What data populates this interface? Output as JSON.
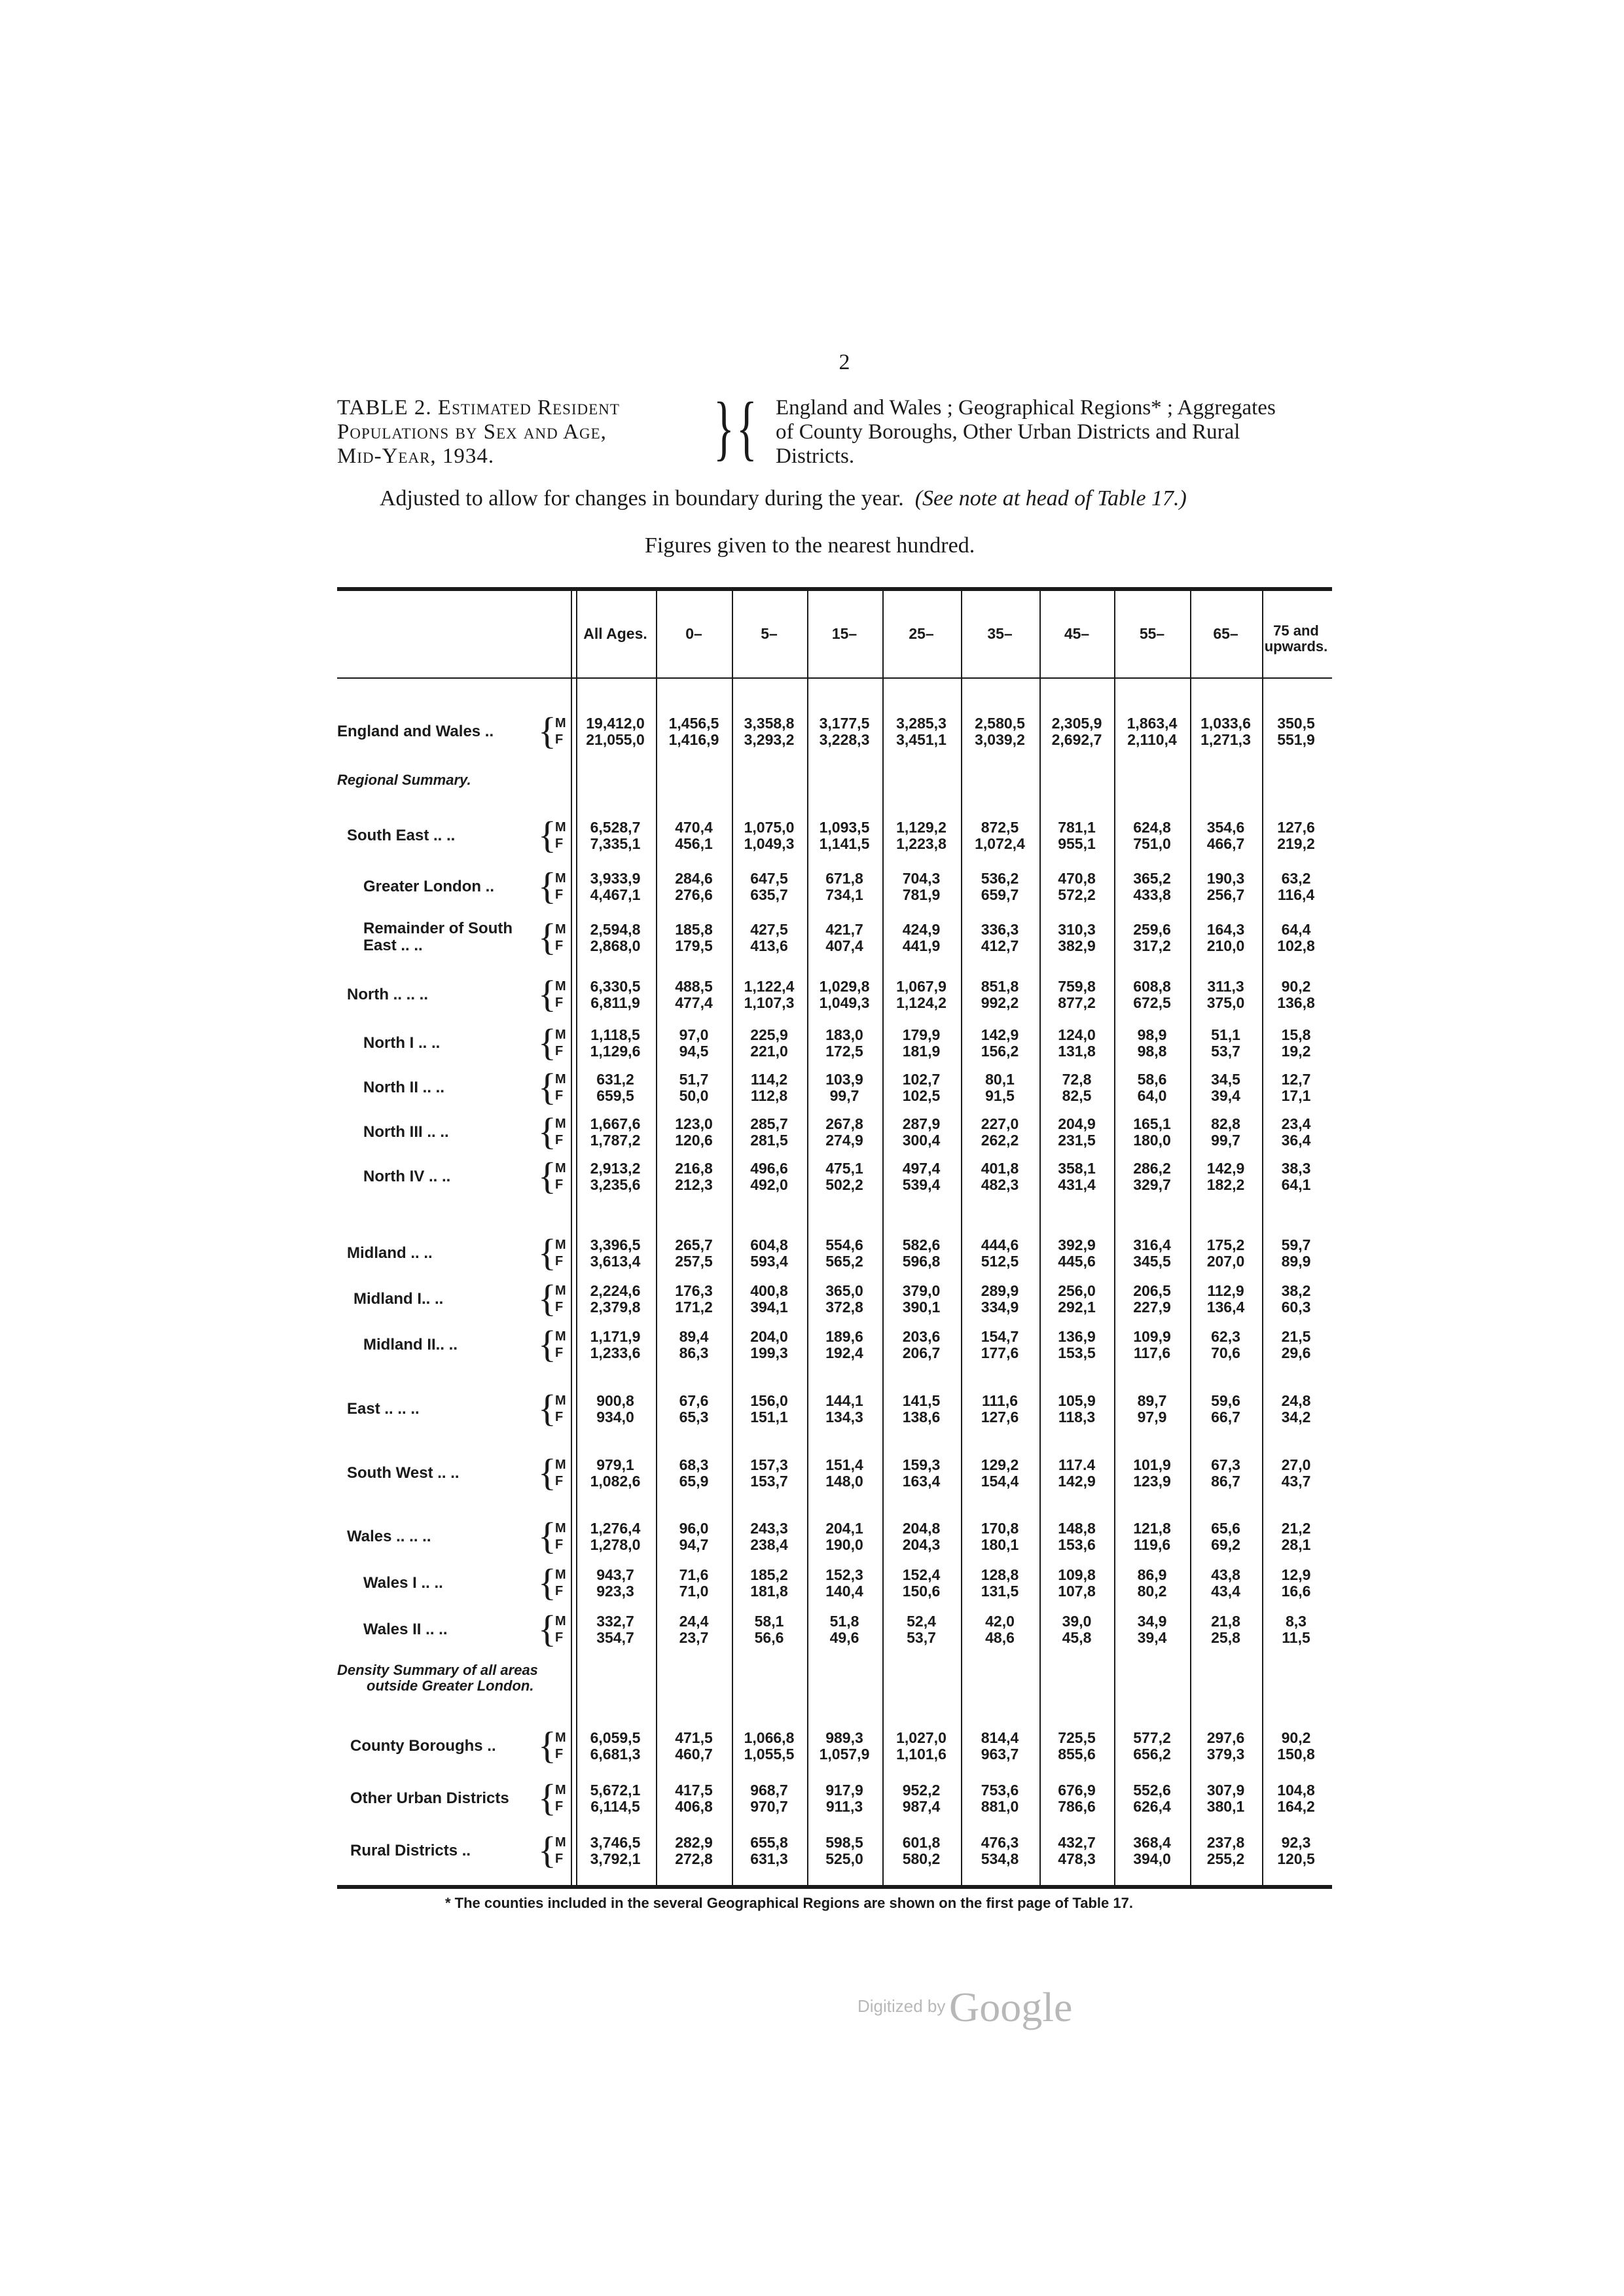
{
  "page_number": "2",
  "caption": {
    "left_lines": [
      "TABLE 2. Estimated Resident",
      "Populations by Sex and Age,",
      "Mid-Year, 1934."
    ],
    "right_lines": [
      "England and Wales ; Geographical Regions* ; Aggregates",
      "of County Boroughs, Other Urban Districts and Rural",
      "Districts."
    ]
  },
  "adjusted_text": "Adjusted to allow for changes in boundary during the year.",
  "adjusted_note": "(See note at head of Table 17.)",
  "figures_text": "Figures given to the nearest hundred.",
  "columns": [
    "All Ages.",
    "0–",
    "5–",
    "15–",
    "25–",
    "35–",
    "45–",
    "55–",
    "65–"
  ],
  "last_column": [
    "75 and",
    "upwards."
  ],
  "sections": {
    "regional": "Regional Summary.",
    "density_1": "Density Summary of all areas",
    "density_2": "outside Greater London."
  },
  "sex_labels": {
    "m": "M",
    "f": "F"
  },
  "rows": [
    {
      "label": "England and Wales",
      "dots": "..",
      "m": [
        "19,412,0",
        "1,456,5",
        "3,358,8",
        "3,177,5",
        "3,285,3",
        "2,580,5",
        "2,305,9",
        "1,863,4",
        "1,033,6",
        "350,5"
      ],
      "f": [
        "21,055,0",
        "1,416,9",
        "3,293,2",
        "3,228,3",
        "3,451,1",
        "3,039,2",
        "2,692,7",
        "2,110,4",
        "1,271,3",
        "551,9"
      ]
    },
    {
      "label": "South East  ..",
      "dots": "..",
      "m": [
        "6,528,7",
        "470,4",
        "1,075,0",
        "1,093,5",
        "1,129,2",
        "872,5",
        "781,1",
        "624,8",
        "354,6",
        "127,6"
      ],
      "f": [
        "7,335,1",
        "456,1",
        "1,049,3",
        "1,141,5",
        "1,223,8",
        "1,072,4",
        "955,1",
        "751,0",
        "466,7",
        "219,2"
      ]
    },
    {
      "label": "Greater London",
      "dots": "..",
      "m": [
        "3,933,9",
        "284,6",
        "647,5",
        "671,8",
        "704,3",
        "536,2",
        "470,8",
        "365,2",
        "190,3",
        "63,2"
      ],
      "f": [
        "4,467,1",
        "276,6",
        "635,7",
        "734,1",
        "781,9",
        "659,7",
        "572,2",
        "433,8",
        "256,7",
        "116,4"
      ]
    },
    {
      "label": "Remainder of South",
      "label2": "East  ..  ..",
      "dots": "",
      "m": [
        "2,594,8",
        "185,8",
        "427,5",
        "421,7",
        "424,9",
        "336,3",
        "310,3",
        "259,6",
        "164,3",
        "64,4"
      ],
      "f": [
        "2,868,0",
        "179,5",
        "413,6",
        "407,4",
        "441,9",
        "412,7",
        "382,9",
        "317,2",
        "210,0",
        "102,8"
      ]
    },
    {
      "label": "North ..   ..",
      "dots": "..",
      "m": [
        "6,330,5",
        "488,5",
        "1,122,4",
        "1,029,8",
        "1,067,9",
        "851,8",
        "759,8",
        "608,8",
        "311,3",
        "90,2"
      ],
      "f": [
        "6,811,9",
        "477,4",
        "1,107,3",
        "1,049,3",
        "1,124,2",
        "992,2",
        "877,2",
        "672,5",
        "375,0",
        "136,8"
      ]
    },
    {
      "label": "North I   ..",
      "dots": "..",
      "m": [
        "1,118,5",
        "97,0",
        "225,9",
        "183,0",
        "179,9",
        "142,9",
        "124,0",
        "98,9",
        "51,1",
        "15,8"
      ],
      "f": [
        "1,129,6",
        "94,5",
        "221,0",
        "172,5",
        "181,9",
        "156,2",
        "131,8",
        "98,8",
        "53,7",
        "19,2"
      ]
    },
    {
      "label": "North II  ..",
      "dots": "..",
      "m": [
        "631,2",
        "51,7",
        "114,2",
        "103,9",
        "102,7",
        "80,1",
        "72,8",
        "58,6",
        "34,5",
        "12,7"
      ],
      "f": [
        "659,5",
        "50,0",
        "112,8",
        "99,7",
        "102,5",
        "91,5",
        "82,5",
        "64,0",
        "39,4",
        "17,1"
      ]
    },
    {
      "label": "North III ..",
      "dots": "..",
      "m": [
        "1,667,6",
        "123,0",
        "285,7",
        "267,8",
        "287,9",
        "227,0",
        "204,9",
        "165,1",
        "82,8",
        "23,4"
      ],
      "f": [
        "1,787,2",
        "120,6",
        "281,5",
        "274,9",
        "300,4",
        "262,2",
        "231,5",
        "180,0",
        "99,7",
        "36,4"
      ]
    },
    {
      "label": "North IV  ..",
      "dots": "..",
      "m": [
        "2,913,2",
        "216,8",
        "496,6",
        "475,1",
        "497,4",
        "401,8",
        "358,1",
        "286,2",
        "142,9",
        "38,3"
      ],
      "f": [
        "3,235,6",
        "212,3",
        "492,0",
        "502,2",
        "539,4",
        "482,3",
        "431,4",
        "329,7",
        "182,2",
        "64,1"
      ]
    },
    {
      "label": "Midland    ..",
      "dots": "..",
      "m": [
        "3,396,5",
        "265,7",
        "604,8",
        "554,6",
        "582,6",
        "444,6",
        "392,9",
        "316,4",
        "175,2",
        "59,7"
      ],
      "f": [
        "3,613,4",
        "257,5",
        "593,4",
        "565,2",
        "596,8",
        "512,5",
        "445,6",
        "345,5",
        "207,0",
        "89,9"
      ]
    },
    {
      "label": "Midland  I..",
      "dots": "..",
      "m": [
        "2,224,6",
        "176,3",
        "400,8",
        "365,0",
        "379,0",
        "289,9",
        "256,0",
        "206,5",
        "112,9",
        "38,2"
      ],
      "f": [
        "2,379,8",
        "171,2",
        "394,1",
        "372,8",
        "390,1",
        "334,9",
        "292,1",
        "227,9",
        "136,4",
        "60,3"
      ]
    },
    {
      "label": "Midland II..",
      "dots": "..",
      "m": [
        "1,171,9",
        "89,4",
        "204,0",
        "189,6",
        "203,6",
        "154,7",
        "136,9",
        "109,9",
        "62,3",
        "21,5"
      ],
      "f": [
        "1,233,6",
        "86,3",
        "199,3",
        "192,4",
        "206,7",
        "177,6",
        "153,5",
        "117,6",
        "70,6",
        "29,6"
      ]
    },
    {
      "label": "East  ..   ..",
      "dots": "..",
      "m": [
        "900,8",
        "67,6",
        "156,0",
        "144,1",
        "141,5",
        "111,6",
        "105,9",
        "89,7",
        "59,6",
        "24,8"
      ],
      "f": [
        "934,0",
        "65,3",
        "151,1",
        "134,3",
        "138,6",
        "127,6",
        "118,3",
        "97,9",
        "66,7",
        "34,2"
      ]
    },
    {
      "label": "South West  ..",
      "dots": "..",
      "m": [
        "979,1",
        "68,3",
        "157,3",
        "151,4",
        "159,3",
        "129,2",
        "117.4",
        "101,9",
        "67,3",
        "27,0"
      ],
      "f": [
        "1,082,6",
        "65,9",
        "153,7",
        "148,0",
        "163,4",
        "154,4",
        "142,9",
        "123,9",
        "86,7",
        "43,7"
      ]
    },
    {
      "label": "Wales ..   ..",
      "dots": "..",
      "m": [
        "1,276,4",
        "96,0",
        "243,3",
        "204,1",
        "204,8",
        "170,8",
        "148,8",
        "121,8",
        "65,6",
        "21,2"
      ],
      "f": [
        "1,278,0",
        "94,7",
        "238,4",
        "190,0",
        "204,3",
        "180,1",
        "153,6",
        "119,6",
        "69,2",
        "28,1"
      ]
    },
    {
      "label": "Wales I  ..",
      "dots": "..",
      "m": [
        "943,7",
        "71,6",
        "185,2",
        "152,3",
        "152,4",
        "128,8",
        "109,8",
        "86,9",
        "43,8",
        "12,9"
      ],
      "f": [
        "923,3",
        "71,0",
        "181,8",
        "140,4",
        "150,6",
        "131,5",
        "107,8",
        "80,2",
        "43,4",
        "16,6"
      ]
    },
    {
      "label": "Wales II  ..",
      "dots": "..",
      "m": [
        "332,7",
        "24,4",
        "58,1",
        "51,8",
        "52,4",
        "42,0",
        "39,0",
        "34,9",
        "21,8",
        "8,3"
      ],
      "f": [
        "354,7",
        "23,7",
        "56,6",
        "49,6",
        "53,7",
        "48,6",
        "45,8",
        "39,4",
        "25,8",
        "11,5"
      ]
    },
    {
      "label": "County Boroughs",
      "dots": "..",
      "m": [
        "6,059,5",
        "471,5",
        "1,066,8",
        "989,3",
        "1,027,0",
        "814,4",
        "725,5",
        "577,2",
        "297,6",
        "90,2"
      ],
      "f": [
        "6,681,3",
        "460,7",
        "1,055,5",
        "1,057,9",
        "1,101,6",
        "963,7",
        "855,6",
        "656,2",
        "379,3",
        "150,8"
      ]
    },
    {
      "label": "Other Urban Districts",
      "dots": "",
      "m": [
        "5,672,1",
        "417,5",
        "968,7",
        "917,9",
        "952,2",
        "753,6",
        "676,9",
        "552,6",
        "307,9",
        "104,8"
      ],
      "f": [
        "6,114,5",
        "406,8",
        "970,7",
        "911,3",
        "987,4",
        "881,0",
        "786,6",
        "626,4",
        "380,1",
        "164,2"
      ]
    },
    {
      "label": "Rural Districts",
      "dots": "..",
      "m": [
        "3,746,5",
        "282,9",
        "655,8",
        "598,5",
        "601,8",
        "476,3",
        "432,7",
        "368,4",
        "237,8",
        "92,3"
      ],
      "f": [
        "3,792,1",
        "272,8",
        "631,3",
        "525,0",
        "580,2",
        "534,8",
        "478,3",
        "394,0",
        "255,2",
        "120,5"
      ]
    }
  ],
  "footnote": "* The counties included in the several Geographical Regions are shown on the first page of Table 17.",
  "watermark": {
    "digitized": "Digitized by",
    "brand": "Google"
  }
}
